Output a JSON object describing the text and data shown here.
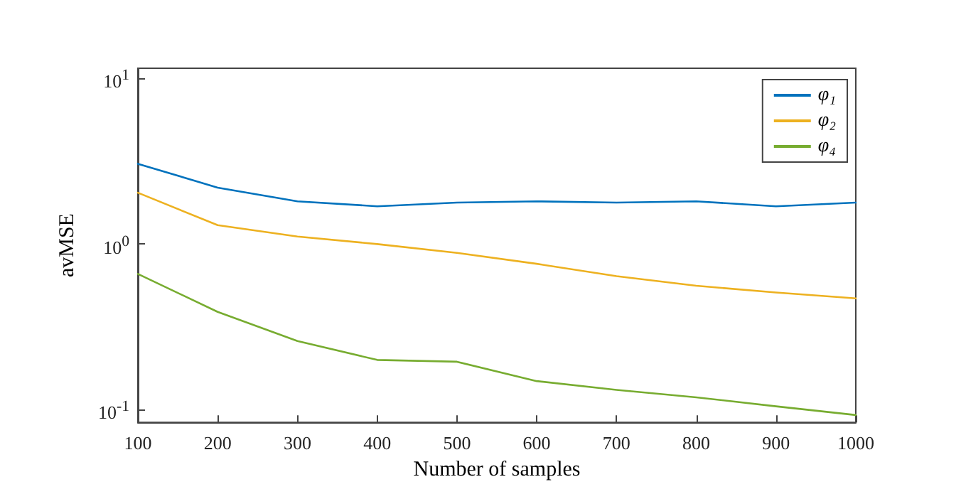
{
  "chart_data": {
    "type": "line",
    "xlabel": "Number of samples",
    "ylabel": "avMSE",
    "log": "y",
    "grid": false,
    "legend": "top right",
    "marker": "none",
    "line_style": "solid",
    "x": [
      100,
      200,
      300,
      400,
      500,
      600,
      700,
      800,
      900,
      1000
    ],
    "xlim": [
      100,
      1000
    ],
    "xticks": [
      100,
      200,
      300,
      400,
      500,
      600,
      700,
      800,
      900,
      1000
    ],
    "ylim": [
      0.084,
      11.5
    ],
    "yticks": [
      {
        "value": 0.1,
        "label": "10$^{-1}$"
      },
      {
        "value": 1,
        "label": "10$^{0}$"
      },
      {
        "value": 10,
        "label": "10$^{1}$"
      }
    ],
    "series": [
      {
        "name": "φ₁",
        "color": "#0072bd",
        "values": [
          3.05,
          2.19,
          1.81,
          1.69,
          1.78,
          1.81,
          1.78,
          1.81,
          1.69,
          1.78
        ]
      },
      {
        "name": "φ₂",
        "color": "#edb120",
        "values": [
          2.04,
          1.3,
          1.11,
          1.0,
          0.885,
          0.76,
          0.64,
          0.56,
          0.51,
          0.47
        ]
      },
      {
        "name": "φ₄",
        "color": "#77ac30",
        "values": [
          0.66,
          0.39,
          0.26,
          0.2,
          0.195,
          0.149,
          0.132,
          0.119,
          0.105,
          0.093
        ]
      }
    ]
  }
}
